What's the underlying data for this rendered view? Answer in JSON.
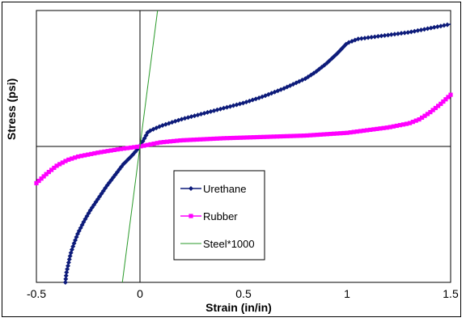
{
  "chart_data": {
    "type": "line",
    "xlabel": "Strain (in/in)",
    "ylabel": "Stress (psi)",
    "xlim": [
      -0.5,
      1.5
    ],
    "ylim": [
      -1,
      1
    ],
    "x_ticks": [
      "-0.5",
      "0",
      "0.5",
      "1",
      "1.5"
    ],
    "grid": false,
    "legend_position": "center",
    "series": [
      {
        "name": "Urethane",
        "color": "#0d1b7a",
        "marker": "diamond",
        "points": [
          [
            -0.36,
            -1.0
          ],
          [
            -0.355,
            -0.93
          ],
          [
            -0.345,
            -0.86
          ],
          [
            -0.335,
            -0.79
          ],
          [
            -0.32,
            -0.72
          ],
          [
            -0.3,
            -0.64
          ],
          [
            -0.27,
            -0.55
          ],
          [
            -0.24,
            -0.47
          ],
          [
            -0.2,
            -0.38
          ],
          [
            -0.16,
            -0.29
          ],
          [
            -0.12,
            -0.21
          ],
          [
            -0.08,
            -0.13
          ],
          [
            -0.04,
            -0.07
          ],
          [
            0.0,
            0.0
          ],
          [
            0.04,
            0.11
          ],
          [
            0.1,
            0.15
          ],
          [
            0.2,
            0.2
          ],
          [
            0.3,
            0.24
          ],
          [
            0.4,
            0.28
          ],
          [
            0.5,
            0.32
          ],
          [
            0.6,
            0.37
          ],
          [
            0.7,
            0.43
          ],
          [
            0.8,
            0.5
          ],
          [
            0.85,
            0.55
          ],
          [
            0.9,
            0.61
          ],
          [
            0.95,
            0.68
          ],
          [
            1.0,
            0.76
          ],
          [
            1.05,
            0.79
          ],
          [
            1.1,
            0.8
          ],
          [
            1.2,
            0.82
          ],
          [
            1.3,
            0.84
          ],
          [
            1.4,
            0.87
          ],
          [
            1.5,
            0.9
          ]
        ]
      },
      {
        "name": "Rubber",
        "color": "#ff00ff",
        "marker": "square",
        "points": [
          [
            -0.5,
            -0.27
          ],
          [
            -0.45,
            -0.2
          ],
          [
            -0.4,
            -0.14
          ],
          [
            -0.35,
            -0.1
          ],
          [
            -0.3,
            -0.075
          ],
          [
            -0.2,
            -0.045
          ],
          [
            -0.1,
            -0.02
          ],
          [
            0.0,
            0.0
          ],
          [
            0.1,
            0.03
          ],
          [
            0.2,
            0.045
          ],
          [
            0.4,
            0.06
          ],
          [
            0.6,
            0.07
          ],
          [
            0.8,
            0.08
          ],
          [
            1.0,
            0.1
          ],
          [
            1.1,
            0.12
          ],
          [
            1.2,
            0.14
          ],
          [
            1.3,
            0.17
          ],
          [
            1.35,
            0.2
          ],
          [
            1.4,
            0.25
          ],
          [
            1.45,
            0.31
          ],
          [
            1.5,
            0.38
          ]
        ]
      },
      {
        "name": "Steel*1000",
        "color": "#2a9a2a",
        "marker": "none",
        "points": [
          [
            -0.085,
            -1.0
          ],
          [
            0.085,
            1.0
          ]
        ]
      }
    ]
  }
}
